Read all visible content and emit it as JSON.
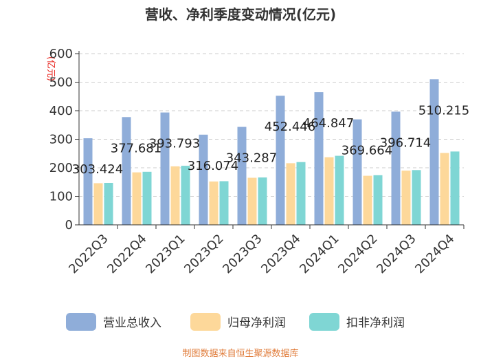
{
  "chart_data": {
    "type": "bar",
    "title": "营收、净利季度变动情况(亿元)",
    "ylabel": "(亿元)",
    "xlabel": "",
    "ylim": [
      0,
      600
    ],
    "yticks": [
      0,
      100,
      200,
      300,
      400,
      500,
      600
    ],
    "grid": true,
    "legend_position": "bottom",
    "categories": [
      "2022Q3",
      "2022Q4",
      "2023Q1",
      "2023Q2",
      "2023Q3",
      "2023Q4",
      "2024Q1",
      "2024Q2",
      "2024Q3",
      "2024Q4"
    ],
    "series": [
      {
        "name": "营业总收入",
        "color": "#8fadd9",
        "values": [
          303.424,
          377.681,
          393.793,
          316.074,
          343.287,
          452.446,
          464.847,
          369.664,
          396.714,
          510.215
        ],
        "labels": [
          "303.424",
          "377.681",
          "393.793",
          "316.074",
          "343.287",
          "452.446",
          "464.847",
          "369.664",
          "396.714",
          "510.215"
        ]
      },
      {
        "name": "归母净利润",
        "color": "#fdd89a",
        "values": [
          146,
          184,
          205,
          152,
          165,
          216,
          237,
          172,
          190,
          252
        ]
      },
      {
        "name": "扣非净利润",
        "color": "#7fd6d4",
        "values": [
          147,
          186,
          207,
          153,
          166,
          220,
          242,
          174,
          192,
          257
        ]
      }
    ],
    "source": "制图数据来自恒生聚源数据库"
  }
}
